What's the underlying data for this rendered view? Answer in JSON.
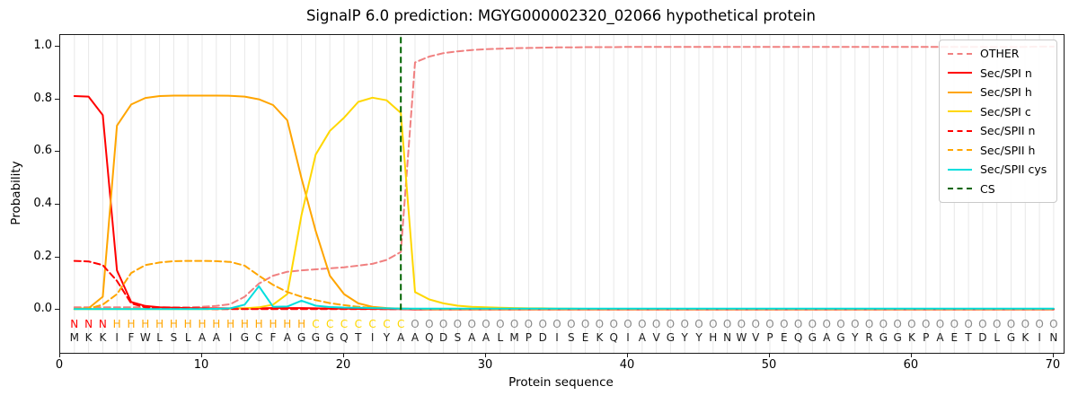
{
  "title": "SignalP 6.0 prediction: MGYG000002320_02066 hypothetical protein",
  "legend": [
    {
      "label": "OTHER",
      "color": "#f08080",
      "style": "dashed"
    },
    {
      "label": "Sec/SPI n",
      "color": "#ff0000",
      "style": "solid"
    },
    {
      "label": "Sec/SPI h",
      "color": "#ffa500",
      "style": "solid"
    },
    {
      "label": "Sec/SPI c",
      "color": "#ffd700",
      "style": "solid"
    },
    {
      "label": "Sec/SPII n",
      "color": "#ff0000",
      "style": "dashed"
    },
    {
      "label": "Sec/SPII h",
      "color": "#ffa500",
      "style": "dashed"
    },
    {
      "label": "Sec/SPII cys",
      "color": "#00dede",
      "style": "solid"
    },
    {
      "label": "CS",
      "color": "#006400",
      "style": "dashed"
    }
  ],
  "chart_data": {
    "type": "line",
    "title": "SignalP 6.0 prediction: MGYG000002320_02066 hypothetical protein",
    "xlabel": "Protein sequence",
    "ylabel": "Probability",
    "xlim": [
      0,
      70.7
    ],
    "ylim": [
      -0.163,
      1.044
    ],
    "xticks": [
      0,
      10,
      20,
      30,
      40,
      50,
      60,
      70
    ],
    "yticks": [
      0,
      0.2,
      0.4,
      0.6,
      0.8,
      1.0
    ],
    "ytick_labels": [
      "0.0",
      "0.2",
      "0.4",
      "0.6",
      "0.8",
      "1.0"
    ],
    "grid": "vertical line at every residue position",
    "grid_color": "#e8e8e8",
    "legend_position": "upper right",
    "x_start": 1,
    "x_step": 1,
    "sequence": "MKKIFWLSLAAIGCFAGGGQTIYAAQDSAALMPDISEKQIAVGYYHNWVPEQGAGYRGGKPAETDLGKIN",
    "seq_color": "#1a1a1a",
    "region_segments": [
      {
        "letter": "N",
        "start": 1,
        "end": 3,
        "color": "#ff0000"
      },
      {
        "letter": "H",
        "start": 4,
        "end": 17,
        "color": "#ffa500"
      },
      {
        "letter": "C",
        "start": 18,
        "end": 24,
        "color": "#ffd700"
      },
      {
        "letter": "O",
        "start": 25,
        "end": 70,
        "color": "#8a8a8a"
      }
    ],
    "cs_line": {
      "name": "CS",
      "position": 24,
      "color": "#006400",
      "dash": true
    },
    "series": [
      {
        "name": "OTHER",
        "color": "#f08080",
        "dash": true,
        "values": [
          0.01,
          0.01,
          0.01,
          0.01,
          0.01,
          0.01,
          0.01,
          0.01,
          0.01,
          0.012,
          0.015,
          0.022,
          0.05,
          0.1,
          0.13,
          0.145,
          0.15,
          0.154,
          0.158,
          0.162,
          0.168,
          0.175,
          0.19,
          0.22,
          0.94,
          0.962,
          0.975,
          0.982,
          0.987,
          0.99,
          0.992,
          0.994,
          0.995,
          0.996,
          0.997,
          0.997,
          0.998,
          0.998,
          0.998,
          0.999,
          0.999,
          0.999,
          0.999,
          0.999,
          0.999,
          0.999,
          0.999,
          0.999,
          0.999,
          0.999,
          0.999,
          0.999,
          0.999,
          0.999,
          0.999,
          0.999,
          0.999,
          0.999,
          0.999,
          0.999,
          0.999,
          0.999,
          0.999,
          0.999,
          0.999,
          0.999,
          0.999,
          0.999,
          1.0,
          1.0
        ]
      },
      {
        "name": "Sec/SPI n",
        "color": "#ff0000",
        "dash": false,
        "values": [
          0.812,
          0.81,
          0.74,
          0.15,
          0.03,
          0.015,
          0.01,
          0.008,
          0.007,
          0.006,
          0.006,
          0.006,
          0.006,
          0.006,
          0.007,
          0.007,
          0.007,
          0.006,
          0.005,
          0.005,
          0.004,
          0.004,
          0.003,
          0.003,
          0.002,
          0.002,
          0.002,
          0.002,
          0.002,
          0.002,
          0.002,
          0.002,
          0.002,
          0.002,
          0.002,
          0.002,
          0.002,
          0.002,
          0.002,
          0.002,
          0.002,
          0.002,
          0.002,
          0.002,
          0.002,
          0.002,
          0.002,
          0.002,
          0.002,
          0.002,
          0.002,
          0.002,
          0.002,
          0.002,
          0.002,
          0.002,
          0.002,
          0.002,
          0.002,
          0.002,
          0.002,
          0.002,
          0.002,
          0.002,
          0.002,
          0.002,
          0.002,
          0.002,
          0.002,
          0.002
        ]
      },
      {
        "name": "Sec/SPI h",
        "color": "#ffa500",
        "dash": false,
        "values": [
          0.004,
          0.006,
          0.05,
          0.7,
          0.78,
          0.805,
          0.812,
          0.814,
          0.814,
          0.814,
          0.814,
          0.813,
          0.81,
          0.8,
          0.778,
          0.72,
          0.5,
          0.3,
          0.13,
          0.06,
          0.025,
          0.012,
          0.007,
          0.005,
          0.004,
          0.003,
          0.003,
          0.003,
          0.003,
          0.003,
          0.003,
          0.003,
          0.003,
          0.003,
          0.003,
          0.003,
          0.003,
          0.003,
          0.003,
          0.003,
          0.003,
          0.003,
          0.003,
          0.003,
          0.003,
          0.003,
          0.003,
          0.003,
          0.003,
          0.003,
          0.003,
          0.003,
          0.003,
          0.003,
          0.003,
          0.003,
          0.003,
          0.003,
          0.003,
          0.003,
          0.003,
          0.003,
          0.003,
          0.003,
          0.003,
          0.003,
          0.003,
          0.003,
          0.003,
          0.003
        ]
      },
      {
        "name": "Sec/SPI c",
        "color": "#ffd700",
        "dash": false,
        "values": [
          0.003,
          0.003,
          0.003,
          0.003,
          0.003,
          0.003,
          0.003,
          0.003,
          0.003,
          0.003,
          0.003,
          0.004,
          0.006,
          0.01,
          0.02,
          0.06,
          0.36,
          0.59,
          0.68,
          0.73,
          0.79,
          0.806,
          0.796,
          0.748,
          0.068,
          0.04,
          0.025,
          0.016,
          0.012,
          0.01,
          0.008,
          0.007,
          0.006,
          0.006,
          0.005,
          0.005,
          0.004,
          0.004,
          0.004,
          0.004,
          0.004,
          0.004,
          0.004,
          0.004,
          0.004,
          0.004,
          0.004,
          0.004,
          0.004,
          0.004,
          0.004,
          0.004,
          0.004,
          0.004,
          0.004,
          0.004,
          0.004,
          0.004,
          0.004,
          0.004,
          0.004,
          0.004,
          0.004,
          0.004,
          0.004,
          0.004,
          0.004,
          0.004,
          0.004,
          0.004
        ]
      },
      {
        "name": "Sec/SPII n",
        "color": "#ff0000",
        "dash": true,
        "values": [
          0.186,
          0.184,
          0.17,
          0.11,
          0.025,
          0.01,
          0.006,
          0.005,
          0.004,
          0.004,
          0.003,
          0.003,
          0.003,
          0.003,
          0.003,
          0.003,
          0.003,
          0.003,
          0.003,
          0.003,
          0.003,
          0.003,
          0.003,
          0.003,
          0.003,
          0.003,
          0.003,
          0.003,
          0.003,
          0.003,
          0.003,
          0.003,
          0.003,
          0.003,
          0.003,
          0.003,
          0.003,
          0.003,
          0.003,
          0.003,
          0.003,
          0.003,
          0.003,
          0.003,
          0.003,
          0.003,
          0.003,
          0.003,
          0.003,
          0.003,
          0.003,
          0.003,
          0.003,
          0.003,
          0.003,
          0.003,
          0.003,
          0.003,
          0.003,
          0.003,
          0.003,
          0.003,
          0.003,
          0.003,
          0.003,
          0.003,
          0.003,
          0.003,
          0.003,
          0.003
        ]
      },
      {
        "name": "Sec/SPII h",
        "color": "#ffa500",
        "dash": true,
        "values": [
          0.003,
          0.005,
          0.02,
          0.06,
          0.14,
          0.17,
          0.18,
          0.185,
          0.186,
          0.186,
          0.185,
          0.182,
          0.168,
          0.13,
          0.095,
          0.068,
          0.05,
          0.037,
          0.026,
          0.018,
          0.012,
          0.008,
          0.006,
          0.005,
          0.004,
          0.003,
          0.003,
          0.003,
          0.003,
          0.003,
          0.003,
          0.003,
          0.003,
          0.003,
          0.003,
          0.003,
          0.003,
          0.003,
          0.003,
          0.003,
          0.003,
          0.003,
          0.003,
          0.003,
          0.003,
          0.003,
          0.003,
          0.003,
          0.003,
          0.003,
          0.003,
          0.003,
          0.003,
          0.003,
          0.003,
          0.003,
          0.003,
          0.003,
          0.003,
          0.003,
          0.003,
          0.003,
          0.003,
          0.003,
          0.003,
          0.003,
          0.003,
          0.003,
          0.003,
          0.003
        ]
      },
      {
        "name": "Sec/SPII cys",
        "color": "#00dede",
        "dash": false,
        "values": [
          0.003,
          0.003,
          0.003,
          0.003,
          0.003,
          0.003,
          0.003,
          0.003,
          0.003,
          0.003,
          0.004,
          0.006,
          0.02,
          0.09,
          0.012,
          0.013,
          0.035,
          0.016,
          0.011,
          0.009,
          0.008,
          0.007,
          0.006,
          0.005,
          0.005,
          0.005,
          0.005,
          0.005,
          0.005,
          0.005,
          0.005,
          0.005,
          0.005,
          0.005,
          0.005,
          0.005,
          0.005,
          0.005,
          0.005,
          0.005,
          0.005,
          0.005,
          0.005,
          0.005,
          0.005,
          0.005,
          0.005,
          0.005,
          0.005,
          0.005,
          0.005,
          0.005,
          0.005,
          0.005,
          0.005,
          0.005,
          0.005,
          0.005,
          0.005,
          0.005,
          0.005,
          0.005,
          0.005,
          0.005,
          0.005,
          0.005,
          0.005,
          0.005,
          0.005,
          0.005
        ]
      }
    ]
  }
}
